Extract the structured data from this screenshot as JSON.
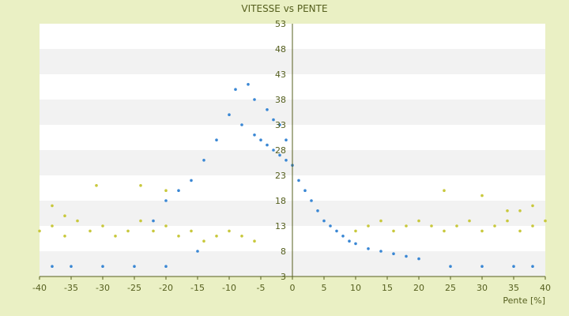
{
  "chart_data": {
    "type": "scatter",
    "title": "VITESSE vs PENTE",
    "xlabel": "Pente [%]",
    "ylabel": "",
    "xlim": [
      -40,
      40
    ],
    "ylim": [
      3,
      53
    ],
    "x_ticks": [
      "-40",
      "-35",
      "-30",
      "-25",
      "-20",
      "-15",
      "-10",
      "-5",
      "0",
      "5",
      "10",
      "15",
      "20",
      "25",
      "30",
      "35",
      "40"
    ],
    "y_ticks": [
      "53",
      "48",
      "43",
      "38",
      "33",
      "28",
      "23",
      "18",
      "13",
      "8",
      "3"
    ],
    "grid": "horizontal bands",
    "legend": "none",
    "colors": {
      "background": "#eaf0c4",
      "plot_background": "#ffffff",
      "band": "#f2f2f2",
      "axis": "#555f1e",
      "series_blue": "#3a87d4",
      "series_yellow": "#c8c83c"
    },
    "series": [
      {
        "color": "#3a87d4",
        "description_points": [
          [
            -10,
            35
          ],
          [
            -8,
            33
          ],
          [
            -6,
            31
          ],
          [
            -5,
            30
          ],
          [
            -4,
            29
          ],
          [
            -3,
            28
          ],
          [
            -2,
            27
          ],
          [
            -1,
            26
          ],
          [
            0,
            25
          ],
          [
            1,
            22
          ],
          [
            2,
            20
          ],
          [
            3,
            18
          ],
          [
            4,
            16
          ],
          [
            5,
            14
          ],
          [
            6,
            13
          ],
          [
            7,
            12
          ],
          [
            8,
            11
          ],
          [
            9,
            10
          ],
          [
            10,
            9.5
          ],
          [
            12,
            8.5
          ],
          [
            14,
            8
          ],
          [
            16,
            7.5
          ],
          [
            18,
            7
          ],
          [
            20,
            6.5
          ],
          [
            -12,
            30
          ],
          [
            -14,
            26
          ],
          [
            -16,
            22
          ],
          [
            -18,
            20
          ],
          [
            -20,
            18
          ],
          [
            -22,
            14
          ],
          [
            -9,
            40
          ],
          [
            -7,
            41
          ],
          [
            -6,
            38
          ],
          [
            -4,
            36
          ],
          [
            -3,
            34
          ],
          [
            -2,
            33
          ],
          [
            -1,
            30
          ],
          [
            -15,
            8
          ],
          [
            -20,
            5
          ],
          [
            -25,
            5
          ],
          [
            -30,
            5
          ],
          [
            -35,
            5
          ],
          [
            -38,
            5
          ],
          [
            25,
            5
          ],
          [
            30,
            5
          ],
          [
            35,
            5
          ],
          [
            38,
            5
          ]
        ]
      },
      {
        "color": "#c8c83c",
        "description_points": [
          [
            -40,
            12
          ],
          [
            -38,
            13
          ],
          [
            -36,
            11
          ],
          [
            -34,
            14
          ],
          [
            -32,
            12
          ],
          [
            -30,
            13
          ],
          [
            -28,
            11
          ],
          [
            -26,
            12
          ],
          [
            -24,
            14
          ],
          [
            -22,
            12
          ],
          [
            -20,
            13
          ],
          [
            -18,
            11
          ],
          [
            -16,
            12
          ],
          [
            -14,
            10
          ],
          [
            -12,
            11
          ],
          [
            -10,
            12
          ],
          [
            -8,
            11
          ],
          [
            -6,
            10
          ],
          [
            10,
            12
          ],
          [
            12,
            13
          ],
          [
            14,
            14
          ],
          [
            16,
            12
          ],
          [
            18,
            13
          ],
          [
            20,
            14
          ],
          [
            22,
            13
          ],
          [
            24,
            12
          ],
          [
            26,
            13
          ],
          [
            28,
            14
          ],
          [
            30,
            12
          ],
          [
            32,
            13
          ],
          [
            34,
            14
          ],
          [
            36,
            12
          ],
          [
            38,
            13
          ],
          [
            40,
            14
          ],
          [
            -31,
            21
          ],
          [
            -24,
            21
          ],
          [
            -20,
            20
          ],
          [
            24,
            20
          ],
          [
            30,
            19
          ],
          [
            34,
            16
          ],
          [
            -38,
            17
          ],
          [
            -36,
            15
          ],
          [
            36,
            16
          ],
          [
            38,
            17
          ]
        ]
      }
    ]
  }
}
